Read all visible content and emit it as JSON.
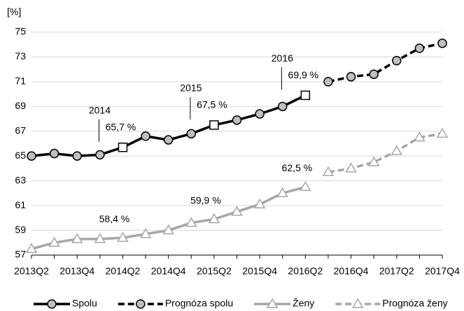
{
  "chart_data": {
    "type": "line",
    "y_unit": "[%]",
    "categories": [
      "2013Q2",
      null,
      "2013Q4",
      null,
      "2014Q2",
      null,
      "2014Q4",
      null,
      "2015Q2",
      null,
      "2015Q4",
      null,
      "2016Q2",
      null,
      "2016Q4",
      null,
      "2017Q2",
      null,
      "2017Q4"
    ],
    "ylim": [
      57,
      75
    ],
    "yticks": [
      57,
      59,
      61,
      63,
      65,
      67,
      69,
      71,
      73,
      75
    ],
    "grid": true,
    "legend": "bottom",
    "annotations": [
      "2014",
      "2015",
      "2016"
    ],
    "series": [
      {
        "name": "Spolu",
        "color": "#000000",
        "dashed": false,
        "marker": "circle",
        "marker_fill": "#bfbfbf",
        "square_markers": [
          4,
          8,
          12
        ],
        "values": [
          65.0,
          65.2,
          65.0,
          65.1,
          65.7,
          66.6,
          66.3,
          66.8,
          67.5,
          67.9,
          68.4,
          69.0,
          69.9,
          null,
          null,
          null,
          null,
          null,
          null
        ],
        "value_labels": [
          null,
          null,
          null,
          null,
          "65,7 %",
          null,
          null,
          null,
          "67,5 %",
          null,
          null,
          null,
          "69,9 %",
          null,
          null,
          null,
          null,
          null,
          null
        ]
      },
      {
        "name": "Prognóza spolu",
        "color": "#000000",
        "dashed": true,
        "marker": "circle",
        "marker_fill": "#bfbfbf",
        "values": [
          null,
          null,
          null,
          null,
          null,
          null,
          null,
          null,
          null,
          null,
          null,
          null,
          null,
          71.0,
          71.4,
          71.6,
          72.7,
          73.7,
          74.1
        ]
      },
      {
        "name": "Ženy",
        "color": "#a6a6a6",
        "dashed": false,
        "marker": "triangle",
        "marker_fill": "#ffffff",
        "values": [
          57.5,
          58.0,
          58.3,
          58.3,
          58.4,
          58.7,
          59.0,
          59.6,
          59.9,
          60.5,
          61.1,
          62.0,
          62.5,
          null,
          null,
          null,
          null,
          null,
          null
        ],
        "value_labels": [
          null,
          null,
          null,
          null,
          "58,4 %",
          null,
          null,
          null,
          "59,9 %",
          null,
          null,
          null,
          "62,5 %",
          null,
          null,
          null,
          null,
          null,
          null
        ]
      },
      {
        "name": "Prognóza ženy",
        "color": "#a6a6a6",
        "dashed": true,
        "marker": "triangle",
        "marker_fill": "#ffffff",
        "values": [
          null,
          null,
          null,
          null,
          null,
          null,
          null,
          null,
          null,
          null,
          null,
          null,
          null,
          63.7,
          64.0,
          64.5,
          65.4,
          66.5,
          66.8
        ]
      }
    ]
  }
}
